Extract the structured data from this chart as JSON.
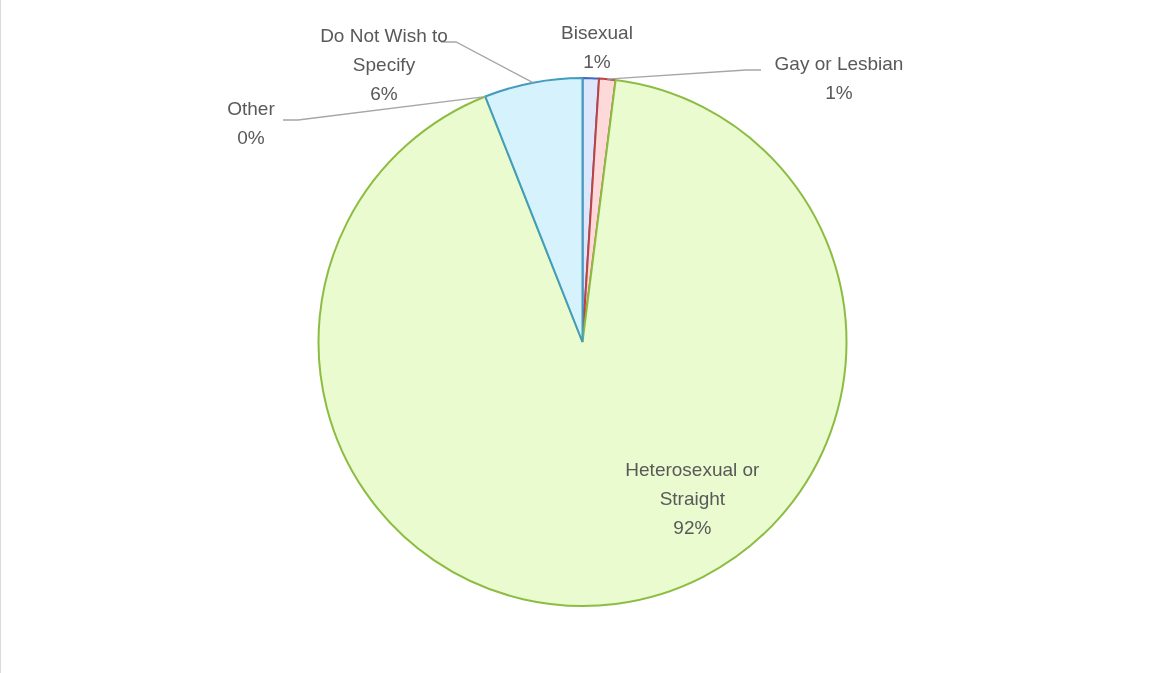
{
  "chart_data": {
    "type": "pie",
    "categories": [
      "Bisexual",
      "Gay or Lesbian",
      "Heterosexual or Straight",
      "Other",
      "Do Not Wish to Specify"
    ],
    "values": [
      1,
      1,
      92,
      0,
      6
    ],
    "value_labels": [
      "1%",
      "1%",
      "92%",
      "0%",
      "6%"
    ],
    "colors": [
      "#dde6fb",
      "#fdd9d9",
      "#eafbd0",
      "#e5dcf0",
      "#d6f2fc"
    ],
    "legend": false
  }
}
